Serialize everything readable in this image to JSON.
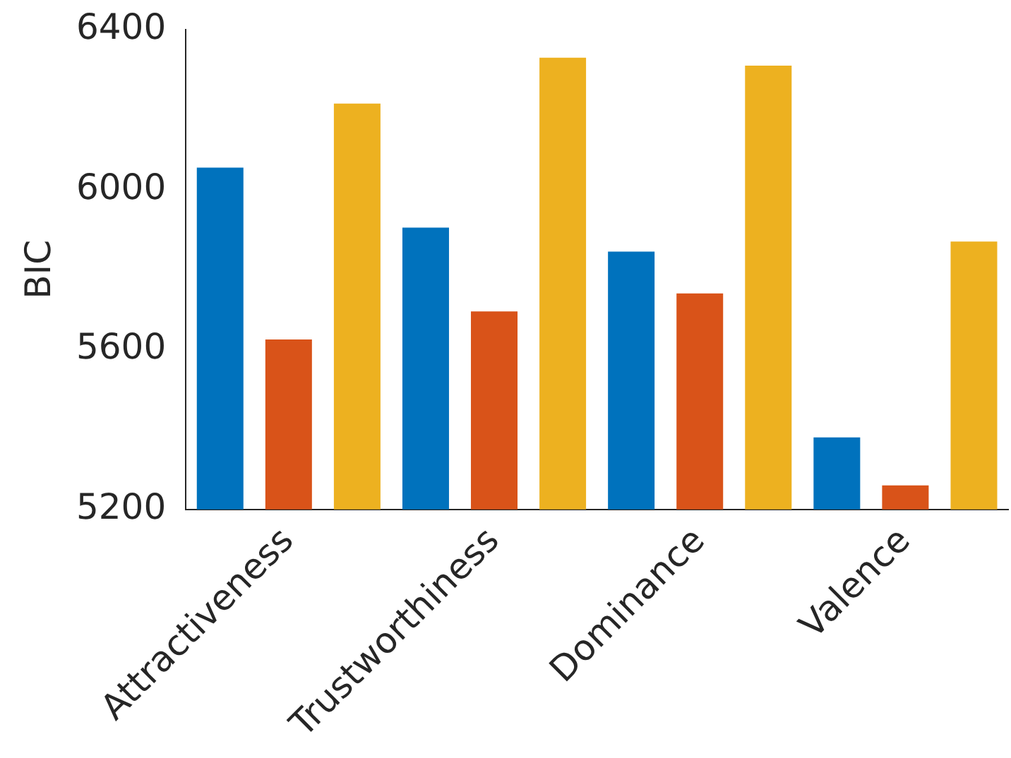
{
  "chart_data": {
    "type": "bar",
    "ylabel": "BIC",
    "categories": [
      "Attractiveness",
      "Trustworthiness",
      "Dominance",
      "Valence"
    ],
    "series": [
      {
        "color": "#0072bd",
        "values": [
          6055,
          5905,
          5845,
          5380
        ]
      },
      {
        "color": "#d95319",
        "values": [
          5625,
          5695,
          5740,
          5260
        ]
      },
      {
        "color": "#edb120",
        "values": [
          6215,
          6330,
          6310,
          5870
        ]
      }
    ],
    "ylim": [
      5200,
      6400
    ],
    "yticks": [
      5200,
      5600,
      6000,
      6400
    ],
    "grid": false,
    "legend": false
  }
}
